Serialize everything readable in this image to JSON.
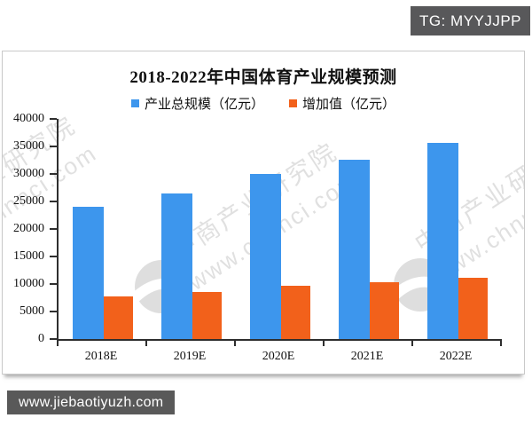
{
  "badges": {
    "tg": "TG: MYYJJPP",
    "site": "www.jiebaotiyuzh.com"
  },
  "watermark": {
    "brand": "中商产业研究院",
    "url": "www.chnnci.com"
  },
  "chart_data": {
    "type": "bar",
    "title": "2018-2022年中国体育产业规模预测",
    "categories": [
      "2018E",
      "2019E",
      "2020E",
      "2021E",
      "2022E"
    ],
    "series": [
      {
        "name": "产业总规模（亿元）",
        "color": "#3D96ED",
        "values": [
          24000,
          26500,
          30000,
          32600,
          35600
        ]
      },
      {
        "name": "增加值（亿元）",
        "color": "#F2611B",
        "values": [
          7800,
          8600,
          9700,
          10400,
          11200
        ]
      }
    ],
    "ylim": [
      0,
      40000
    ],
    "yticks": [
      0,
      5000,
      10000,
      15000,
      20000,
      25000,
      30000,
      35000,
      40000
    ],
    "xlabel": "",
    "ylabel": "",
    "grid": false,
    "legend_position": "top"
  },
  "colors": {
    "bar_total": "#3D96ED",
    "bar_added": "#F2611B",
    "axis": "#2e2e2e",
    "badge_bg": "#58585A",
    "panel_border": "#c9c9c9",
    "watermark": "#c7c7c7"
  }
}
